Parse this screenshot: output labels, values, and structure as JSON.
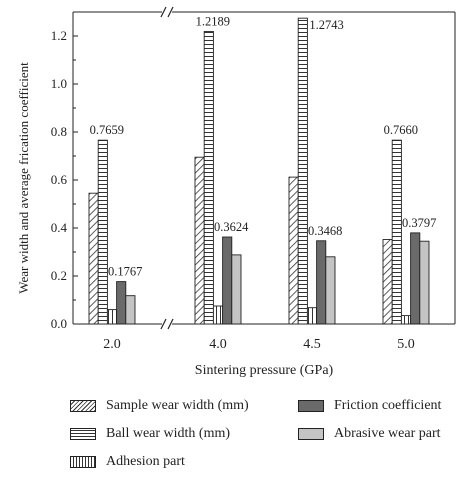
{
  "chart_data": {
    "type": "bar",
    "xlabel": "Sintering pressure (GPa)",
    "ylabel": "Wear width and average frication coefficient",
    "categories": [
      "2.0",
      "4.0",
      "4.5",
      "5.0"
    ],
    "ylim": [
      0,
      1.3
    ],
    "yticks": [
      "0.0",
      "0.2",
      "0.4",
      "0.6",
      "0.8",
      "1.0",
      "1.2"
    ],
    "axis_break": "between 2.0 and 4.0",
    "grid": false,
    "legend_position": "bottom",
    "series": [
      {
        "name": "Sample wear width (mm)",
        "pattern": "diagonal",
        "values": [
          0.545,
          0.695,
          0.612,
          0.352
        ],
        "labels": [
          "",
          "",
          "",
          ""
        ]
      },
      {
        "name": "Ball wear width (mm)",
        "pattern": "horizontal",
        "values": [
          0.7659,
          1.2189,
          1.2743,
          0.766
        ],
        "labels": [
          "0.7659",
          "1.2189",
          "1.2743",
          "0.7660"
        ]
      },
      {
        "name": "Adhesion part",
        "pattern": "vertical",
        "values": [
          0.06,
          0.075,
          0.068,
          0.035
        ],
        "labels": [
          "",
          "",
          "",
          ""
        ]
      },
      {
        "name": "Friction coefficient",
        "pattern": "dark",
        "values": [
          0.1767,
          0.3624,
          0.3468,
          0.3797
        ],
        "labels": [
          "0.1767",
          "0.3624",
          "0.3468",
          "0.3797"
        ]
      },
      {
        "name": "Abrasive wear part",
        "pattern": "light",
        "values": [
          0.118,
          0.288,
          0.28,
          0.345
        ],
        "labels": [
          "",
          "",
          "",
          ""
        ]
      }
    ]
  }
}
